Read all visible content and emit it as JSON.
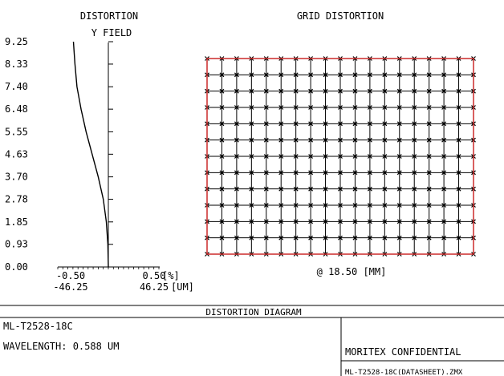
{
  "chart_data": [
    {
      "type": "line",
      "title": "DISTORTION",
      "subtitle": "Y FIELD",
      "yticks": [
        "0.00",
        "0.93",
        "1.85",
        "2.78",
        "3.70",
        "4.63",
        "5.55",
        "6.48",
        "7.40",
        "8.33",
        "9.25"
      ],
      "ylim": [
        0,
        9.25
      ],
      "xlim": [
        -0.5,
        0.5
      ],
      "x_ticks_pct": [
        "-0.50",
        "0.50"
      ],
      "x_unit_pct": "[%]",
      "x_ticks_um": [
        "-46.25",
        "46.25"
      ],
      "x_unit_um": "[UM]",
      "series": [
        {
          "x": [
            0.0,
            -0.005,
            -0.02,
            -0.05,
            -0.1,
            -0.16,
            -0.22,
            -0.27,
            -0.31,
            -0.33,
            -0.34,
            -0.345
          ],
          "y": [
            0.0,
            0.93,
            1.85,
            2.78,
            3.7,
            4.63,
            5.55,
            6.48,
            7.4,
            8.33,
            8.9,
            9.25
          ]
        }
      ]
    },
    {
      "type": "grid",
      "title": "GRID DISTORTION",
      "columns": 19,
      "rows": 13,
      "footer": "@ 18.50 [MM]",
      "colors": {
        "frame": "#cc2a2a",
        "grid": "#000000"
      }
    }
  ],
  "footer": {
    "diagram_title": "DISTORTION DIAGRAM",
    "model": "ML-T2528-18C",
    "wavelength": "WAVELENGTH: 0.588 UM",
    "confidential": "MORITEX CONFIDENTIAL",
    "file": "ML-T2528-18C(DATASHEET).ZMX"
  }
}
